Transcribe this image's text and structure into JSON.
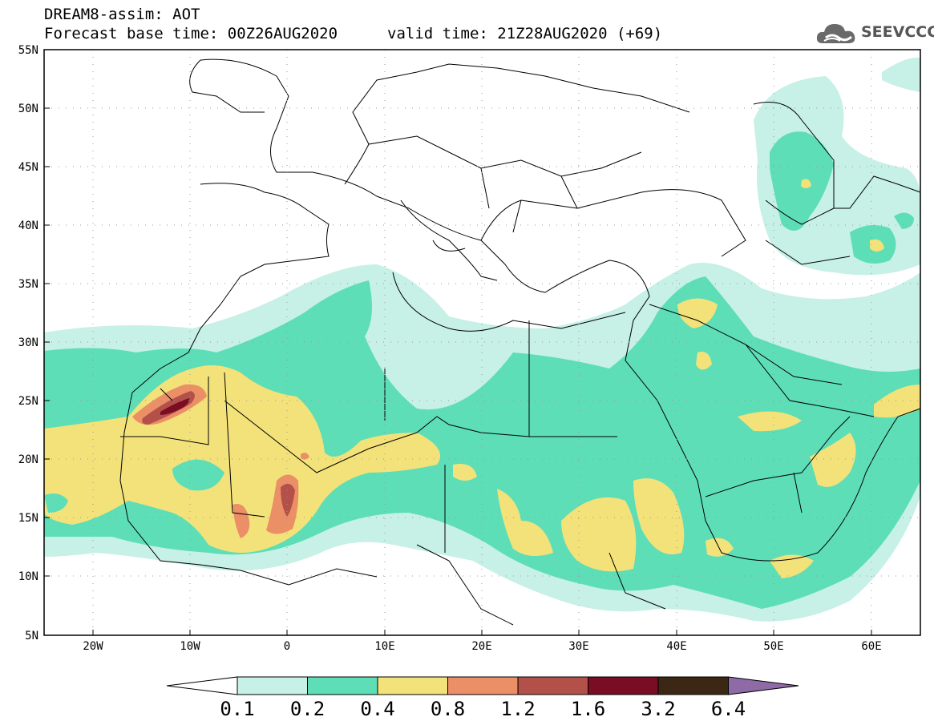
{
  "header": {
    "line1": "DREAM8-assim: AOT",
    "line2": "Forecast base time: 00Z26AUG2020",
    "valid": "valid time: 21Z28AUG2020 (+69)"
  },
  "logo": {
    "text": "SEEVCCC",
    "icon": "cloud-icon"
  },
  "map": {
    "region": {
      "lon_min": -25,
      "lon_max": 65,
      "lat_min": 5,
      "lat_max": 55
    },
    "lat_ticks": [
      "55N",
      "50N",
      "45N",
      "40N",
      "35N",
      "30N",
      "25N",
      "20N",
      "15N",
      "10N",
      "5N"
    ],
    "lon_ticks": [
      "20W",
      "10W",
      "0",
      "10E",
      "20E",
      "30E",
      "40E",
      "50E",
      "60E"
    ]
  },
  "colorbar": {
    "labels": [
      "0.1",
      "0.2",
      "0.4",
      "0.8",
      "1.2",
      "1.6",
      "3.2",
      "6.4"
    ],
    "colors": [
      "#ffffff",
      "#c7f0e6",
      "#5ddeb7",
      "#f3e27a",
      "#eb8f66",
      "#b4504a",
      "#7a0c23",
      "#3c2715",
      "#8e6aa6"
    ]
  },
  "colors": {
    "c1": "#c7f0e6",
    "c2": "#5ddeb7",
    "c3": "#f3e27a",
    "c4": "#eb8f66",
    "c5": "#b4504a",
    "c6": "#7a0c23"
  }
}
